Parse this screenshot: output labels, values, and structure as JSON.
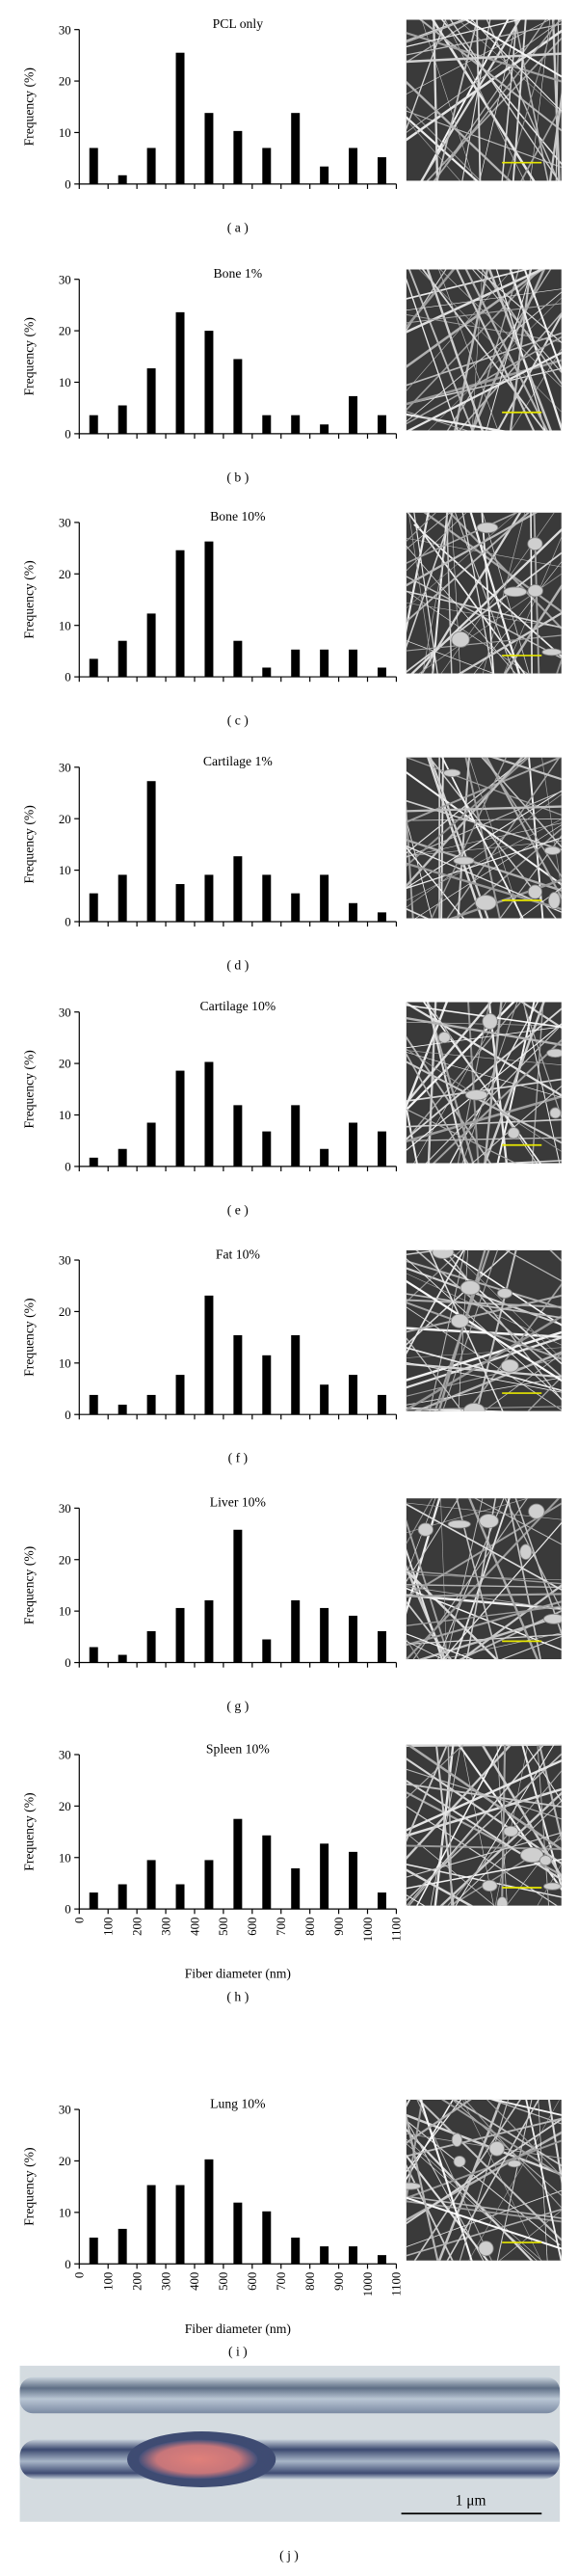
{
  "chart_data": [
    {
      "type": "bar",
      "title": "PCL only",
      "caption": "( a )",
      "ylabel": "Frequency (%)",
      "color": "#000000",
      "x": [
        50,
        150,
        250,
        350,
        450,
        550,
        650,
        750,
        850,
        950,
        1050
      ],
      "values": [
        7,
        1.7,
        7,
        25.5,
        13.8,
        10.3,
        7,
        13.8,
        3.4,
        7,
        5.2
      ],
      "xlim": [
        0,
        1100
      ],
      "xticks": [
        0,
        100,
        200,
        300,
        400,
        500,
        600,
        700,
        800,
        900,
        1000,
        1100
      ],
      "ylim": [
        0,
        30
      ],
      "yticks": [
        0,
        10,
        20,
        30
      ]
    },
    {
      "type": "bar",
      "title": "Bone 1%",
      "caption": "( b )",
      "ylabel": "Frequency (%)",
      "color": "#000000",
      "x": [
        50,
        150,
        250,
        350,
        450,
        550,
        650,
        750,
        850,
        950,
        1050
      ],
      "values": [
        3.6,
        5.5,
        12.7,
        23.6,
        20,
        14.5,
        3.6,
        3.6,
        1.8,
        7.3,
        3.6
      ],
      "xlim": [
        0,
        1100
      ],
      "xticks": [
        0,
        100,
        200,
        300,
        400,
        500,
        600,
        700,
        800,
        900,
        1000,
        1100
      ],
      "ylim": [
        0,
        30
      ],
      "yticks": [
        0,
        10,
        20,
        30
      ]
    },
    {
      "type": "bar",
      "title": "Bone 10%",
      "caption": "( c )",
      "ylabel": "Frequency (%)",
      "color": "#000000",
      "x": [
        50,
        150,
        250,
        350,
        450,
        550,
        650,
        750,
        850,
        950,
        1050
      ],
      "values": [
        3.5,
        7,
        12.3,
        24.6,
        26.3,
        7,
        1.8,
        5.3,
        5.3,
        5.3,
        1.8
      ],
      "xlim": [
        0,
        1100
      ],
      "xticks": [
        0,
        100,
        200,
        300,
        400,
        500,
        600,
        700,
        800,
        900,
        1000,
        1100
      ],
      "ylim": [
        0,
        30
      ],
      "yticks": [
        0,
        10,
        20,
        30
      ]
    },
    {
      "type": "bar",
      "title": "Cartilage 1%",
      "caption": "( d )",
      "ylabel": "Frequency (%)",
      "color": "#000000",
      "x": [
        50,
        150,
        250,
        350,
        450,
        550,
        650,
        750,
        850,
        950,
        1050
      ],
      "values": [
        5.5,
        9.1,
        27.3,
        7.3,
        9.1,
        12.7,
        9.1,
        5.5,
        9.1,
        3.6,
        1.8
      ],
      "xlim": [
        0,
        1100
      ],
      "xticks": [
        0,
        100,
        200,
        300,
        400,
        500,
        600,
        700,
        800,
        900,
        1000,
        1100
      ],
      "ylim": [
        0,
        30
      ],
      "yticks": [
        0,
        10,
        20,
        30
      ]
    },
    {
      "type": "bar",
      "title": "Cartilage 10%",
      "caption": "( e )",
      "ylabel": "Frequency (%)",
      "color": "#000000",
      "x": [
        50,
        150,
        250,
        350,
        450,
        550,
        650,
        750,
        850,
        950,
        1050
      ],
      "values": [
        1.7,
        3.4,
        8.5,
        18.6,
        20.3,
        11.9,
        6.8,
        11.9,
        3.4,
        8.5,
        6.8
      ],
      "xlim": [
        0,
        1100
      ],
      "xticks": [
        0,
        100,
        200,
        300,
        400,
        500,
        600,
        700,
        800,
        900,
        1000,
        1100
      ],
      "ylim": [
        0,
        30
      ],
      "yticks": [
        0,
        10,
        20,
        30
      ]
    },
    {
      "type": "bar",
      "title": "Fat 10%",
      "caption": "( f )",
      "ylabel": "Frequency (%)",
      "color": "#000000",
      "x": [
        50,
        150,
        250,
        350,
        450,
        550,
        650,
        750,
        850,
        950,
        1050
      ],
      "values": [
        3.8,
        1.9,
        3.8,
        7.7,
        23.1,
        15.4,
        11.5,
        15.4,
        5.8,
        7.7,
        3.8
      ],
      "xlim": [
        0,
        1100
      ],
      "xticks": [
        0,
        100,
        200,
        300,
        400,
        500,
        600,
        700,
        800,
        900,
        1000,
        1100
      ],
      "ylim": [
        0,
        30
      ],
      "yticks": [
        0,
        10,
        20,
        30
      ]
    },
    {
      "type": "bar",
      "title": "Liver 10%",
      "caption": "( g )",
      "ylabel": "Frequency (%)",
      "color": "#000000",
      "x": [
        50,
        150,
        250,
        350,
        450,
        550,
        650,
        750,
        850,
        950,
        1050
      ],
      "values": [
        3,
        1.5,
        6.1,
        10.6,
        12.1,
        25.8,
        4.5,
        12.1,
        10.6,
        9.1,
        6.1
      ],
      "xlim": [
        0,
        1100
      ],
      "xticks": [
        0,
        100,
        200,
        300,
        400,
        500,
        600,
        700,
        800,
        900,
        1000,
        1100
      ],
      "ylim": [
        0,
        30
      ],
      "yticks": [
        0,
        10,
        20,
        30
      ]
    },
    {
      "type": "bar",
      "title": "Spleen 10%",
      "caption": "( h )",
      "ylabel": "Frequency (%)",
      "xlabel": "Fiber diameter (nm)",
      "color": "#000000",
      "x": [
        50,
        150,
        250,
        350,
        450,
        550,
        650,
        750,
        850,
        950,
        1050
      ],
      "values": [
        3.2,
        4.8,
        9.5,
        4.8,
        9.5,
        17.5,
        14.3,
        7.9,
        12.7,
        11.1,
        3.2
      ],
      "xlim": [
        0,
        1100
      ],
      "xticks": [
        0,
        100,
        200,
        300,
        400,
        500,
        600,
        700,
        800,
        900,
        1000,
        1100
      ],
      "ylim": [
        0,
        30
      ],
      "yticks": [
        0,
        10,
        20,
        30
      ]
    },
    {
      "type": "bar",
      "title": "Lung 10%",
      "caption": "( i )",
      "ylabel": "Frequency (%)",
      "xlabel": "Fiber diameter (nm)",
      "color": "#000000",
      "x": [
        50,
        150,
        250,
        350,
        450,
        550,
        650,
        750,
        850,
        950,
        1050
      ],
      "values": [
        5.1,
        6.8,
        15.3,
        15.3,
        20.3,
        11.9,
        10.2,
        5.1,
        3.4,
        3.4,
        1.7
      ],
      "xlim": [
        0,
        1100
      ],
      "xticks": [
        0,
        100,
        200,
        300,
        400,
        500,
        600,
        700,
        800,
        900,
        1000,
        1100
      ],
      "ylim": [
        0,
        30
      ],
      "yticks": [
        0,
        10,
        20,
        30
      ]
    }
  ],
  "photo": {
    "scale_bar": "1 μm",
    "caption": "( j )"
  }
}
